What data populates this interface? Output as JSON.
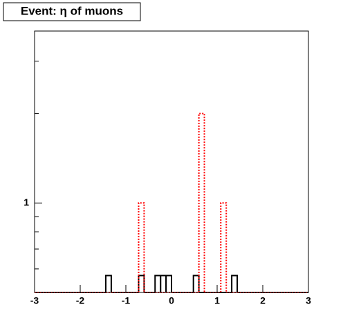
{
  "chart_data": {
    "type": "histogram",
    "title": "Event: η of muons",
    "bins": [
      -3,
      -2.88,
      -2.76,
      -2.64,
      -2.52,
      -2.4,
      -2.28,
      -2.16,
      -2.04,
      -1.92,
      -1.8,
      -1.68,
      -1.56,
      -1.44,
      -1.32,
      -1.2,
      -1.08,
      -0.96,
      -0.84,
      -0.72,
      -0.6,
      -0.48,
      -0.36,
      -0.24,
      -0.12,
      0,
      0.12,
      0.24,
      0.36,
      0.48,
      0.6,
      0.72,
      0.84,
      0.96,
      1.08,
      1.2,
      1.32,
      1.44,
      1.56,
      1.68,
      1.8,
      1.92,
      2.04,
      2.16,
      2.28,
      2.4,
      2.52,
      2.64,
      2.76,
      2.88,
      3
    ],
    "series": [
      {
        "color": "#000000",
        "values": [
          0,
          0,
          0,
          0,
          0,
          0,
          0,
          0,
          0,
          0,
          0,
          0,
          0,
          0.57,
          0,
          0,
          0,
          0,
          0,
          0.57,
          0,
          0,
          0.57,
          0.57,
          0.57,
          0,
          0,
          0,
          0,
          0.57,
          0,
          0,
          0,
          0,
          0,
          0,
          0.57,
          0,
          0,
          0,
          0,
          0,
          0,
          0,
          0,
          0,
          0,
          0,
          0,
          0
        ]
      },
      {
        "color": "#ff0000",
        "dashed": true,
        "values": [
          0,
          0,
          0,
          0,
          0,
          0,
          0,
          0,
          0,
          0,
          0,
          0,
          0,
          0,
          0,
          0,
          0,
          0,
          0,
          1,
          0,
          0,
          0,
          0,
          0,
          0,
          0,
          0,
          0,
          0,
          2,
          0,
          0,
          0,
          1,
          0,
          0,
          0,
          0,
          0,
          0,
          0,
          0,
          0,
          0,
          0,
          0,
          0,
          0,
          0
        ]
      }
    ],
    "xlim": [
      -3,
      3
    ],
    "xticks": [
      -3,
      -2,
      -1,
      0,
      1,
      2,
      3
    ],
    "ylim": [
      0.5,
      3.79
    ],
    "ylog": true,
    "yticks": [
      1
    ],
    "yminorticks": [
      0.6,
      0.7,
      0.8,
      0.9,
      2,
      3
    ]
  }
}
